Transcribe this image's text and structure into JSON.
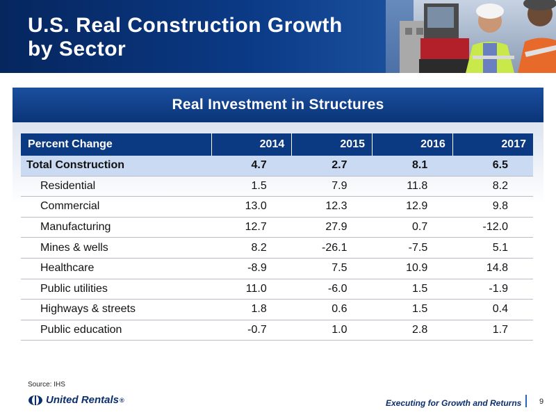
{
  "slide": {
    "title_line1": "U.S. Real Construction Growth",
    "title_line2": "by Sector",
    "section_title": "Real Investment in Structures",
    "source": "Source: IHS",
    "tagline": "Executing for Growth and Returns",
    "page_number": "9",
    "logo_text": "United Rentals",
    "logo_mark": "®"
  },
  "colors": {
    "header_dark": "#06265e",
    "table_header": "#0c3a82",
    "total_row": "#c9daf2",
    "brand_navy": "#0b2f6d"
  },
  "table": {
    "headers": [
      "Percent Change",
      "2014",
      "2015",
      "2016",
      "2017"
    ],
    "rows": [
      [
        "Total Construction",
        "4.7",
        "2.7",
        "8.1",
        "6.5"
      ],
      [
        "Residential",
        "1.5",
        "7.9",
        "11.8",
        "8.2"
      ],
      [
        "Commercial",
        "13.0",
        "12.3",
        "12.9",
        "9.8"
      ],
      [
        "Manufacturing",
        "12.7",
        "27.9",
        "0.7",
        "-12.0"
      ],
      [
        "Mines & wells",
        "8.2",
        "-26.1",
        "-7.5",
        "5.1"
      ],
      [
        "Healthcare",
        "-8.9",
        "7.5",
        "10.9",
        "14.8"
      ],
      [
        "Public utilities",
        "11.0",
        "-6.0",
        "1.5",
        "-1.9"
      ],
      [
        "Highways & streets",
        "1.8",
        "0.6",
        "1.5",
        "0.4"
      ],
      [
        "Public education",
        "-0.7",
        "1.0",
        "2.8",
        "1.7"
      ]
    ]
  }
}
